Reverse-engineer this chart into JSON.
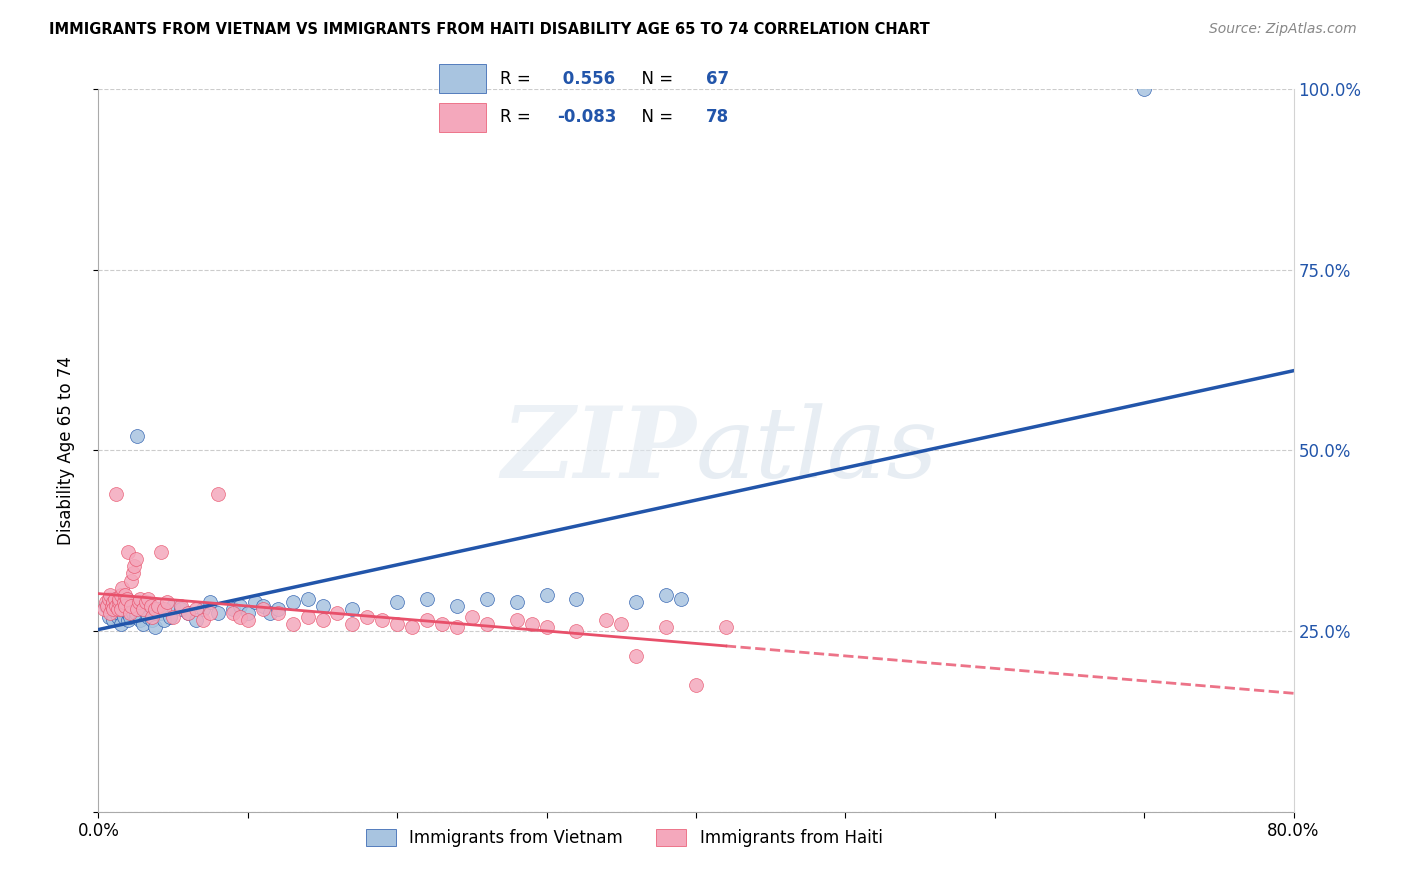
{
  "title": "IMMIGRANTS FROM VIETNAM VS IMMIGRANTS FROM HAITI DISABILITY AGE 65 TO 74 CORRELATION CHART",
  "source": "Source: ZipAtlas.com",
  "ylabel": "Disability Age 65 to 74",
  "legend_label1": "Immigrants from Vietnam",
  "legend_label2": "Immigrants from Haiti",
  "R1": 0.556,
  "N1": 67,
  "R2": -0.083,
  "N2": 78,
  "color1": "#A8C4E0",
  "color2": "#F4A8BC",
  "trendline1_color": "#2255AA",
  "trendline2_color": "#E8506A",
  "xlim": [
    0.0,
    0.8
  ],
  "ylim": [
    0.0,
    1.0
  ],
  "yticks": [
    0.0,
    0.25,
    0.5,
    0.75,
    1.0
  ],
  "yticklabels": [
    "",
    "25.0%",
    "50.0%",
    "75.0%",
    "100.0%"
  ],
  "watermark_zip": "ZIP",
  "watermark_atlas": "atlas",
  "vietnam_x": [
    0.005,
    0.007,
    0.008,
    0.009,
    0.01,
    0.01,
    0.011,
    0.012,
    0.013,
    0.014,
    0.015,
    0.015,
    0.016,
    0.017,
    0.018,
    0.018,
    0.019,
    0.02,
    0.02,
    0.021,
    0.022,
    0.023,
    0.024,
    0.025,
    0.025,
    0.026,
    0.028,
    0.03,
    0.031,
    0.032,
    0.033,
    0.035,
    0.036,
    0.038,
    0.04,
    0.042,
    0.044,
    0.048,
    0.05,
    0.055,
    0.06,
    0.065,
    0.07,
    0.075,
    0.08,
    0.09,
    0.095,
    0.1,
    0.105,
    0.11,
    0.115,
    0.12,
    0.13,
    0.14,
    0.15,
    0.17,
    0.2,
    0.22,
    0.24,
    0.26,
    0.28,
    0.3,
    0.32,
    0.36,
    0.38,
    0.39,
    0.7
  ],
  "vietnam_y": [
    0.285,
    0.27,
    0.29,
    0.275,
    0.265,
    0.28,
    0.295,
    0.275,
    0.27,
    0.275,
    0.285,
    0.26,
    0.28,
    0.27,
    0.285,
    0.29,
    0.295,
    0.265,
    0.275,
    0.27,
    0.28,
    0.275,
    0.285,
    0.27,
    0.275,
    0.52,
    0.265,
    0.26,
    0.28,
    0.275,
    0.27,
    0.285,
    0.265,
    0.255,
    0.28,
    0.275,
    0.265,
    0.27,
    0.285,
    0.28,
    0.275,
    0.265,
    0.28,
    0.29,
    0.275,
    0.28,
    0.285,
    0.275,
    0.29,
    0.285,
    0.275,
    0.28,
    0.29,
    0.295,
    0.285,
    0.28,
    0.29,
    0.295,
    0.285,
    0.295,
    0.29,
    0.3,
    0.295,
    0.29,
    0.3,
    0.295,
    1.0
  ],
  "haiti_x": [
    0.004,
    0.005,
    0.006,
    0.007,
    0.008,
    0.008,
    0.009,
    0.01,
    0.01,
    0.011,
    0.012,
    0.012,
    0.013,
    0.014,
    0.014,
    0.015,
    0.015,
    0.016,
    0.017,
    0.018,
    0.018,
    0.019,
    0.02,
    0.021,
    0.022,
    0.022,
    0.023,
    0.024,
    0.025,
    0.026,
    0.027,
    0.028,
    0.03,
    0.032,
    0.033,
    0.035,
    0.036,
    0.038,
    0.04,
    0.042,
    0.044,
    0.046,
    0.05,
    0.055,
    0.06,
    0.065,
    0.07,
    0.075,
    0.08,
    0.09,
    0.095,
    0.1,
    0.11,
    0.12,
    0.13,
    0.14,
    0.15,
    0.16,
    0.17,
    0.18,
    0.19,
    0.2,
    0.21,
    0.22,
    0.23,
    0.24,
    0.25,
    0.26,
    0.28,
    0.29,
    0.3,
    0.32,
    0.34,
    0.35,
    0.36,
    0.38,
    0.4,
    0.42
  ],
  "haiti_y": [
    0.28,
    0.29,
    0.285,
    0.295,
    0.3,
    0.275,
    0.285,
    0.29,
    0.28,
    0.295,
    0.285,
    0.44,
    0.28,
    0.29,
    0.295,
    0.3,
    0.28,
    0.31,
    0.29,
    0.3,
    0.285,
    0.295,
    0.36,
    0.275,
    0.285,
    0.32,
    0.33,
    0.34,
    0.35,
    0.28,
    0.29,
    0.295,
    0.28,
    0.29,
    0.295,
    0.285,
    0.27,
    0.28,
    0.285,
    0.36,
    0.28,
    0.29,
    0.27,
    0.285,
    0.275,
    0.28,
    0.265,
    0.275,
    0.44,
    0.275,
    0.27,
    0.265,
    0.28,
    0.275,
    0.26,
    0.27,
    0.265,
    0.275,
    0.26,
    0.27,
    0.265,
    0.26,
    0.255,
    0.265,
    0.26,
    0.255,
    0.27,
    0.26,
    0.265,
    0.26,
    0.255,
    0.25,
    0.265,
    0.26,
    0.215,
    0.255,
    0.175,
    0.255
  ]
}
